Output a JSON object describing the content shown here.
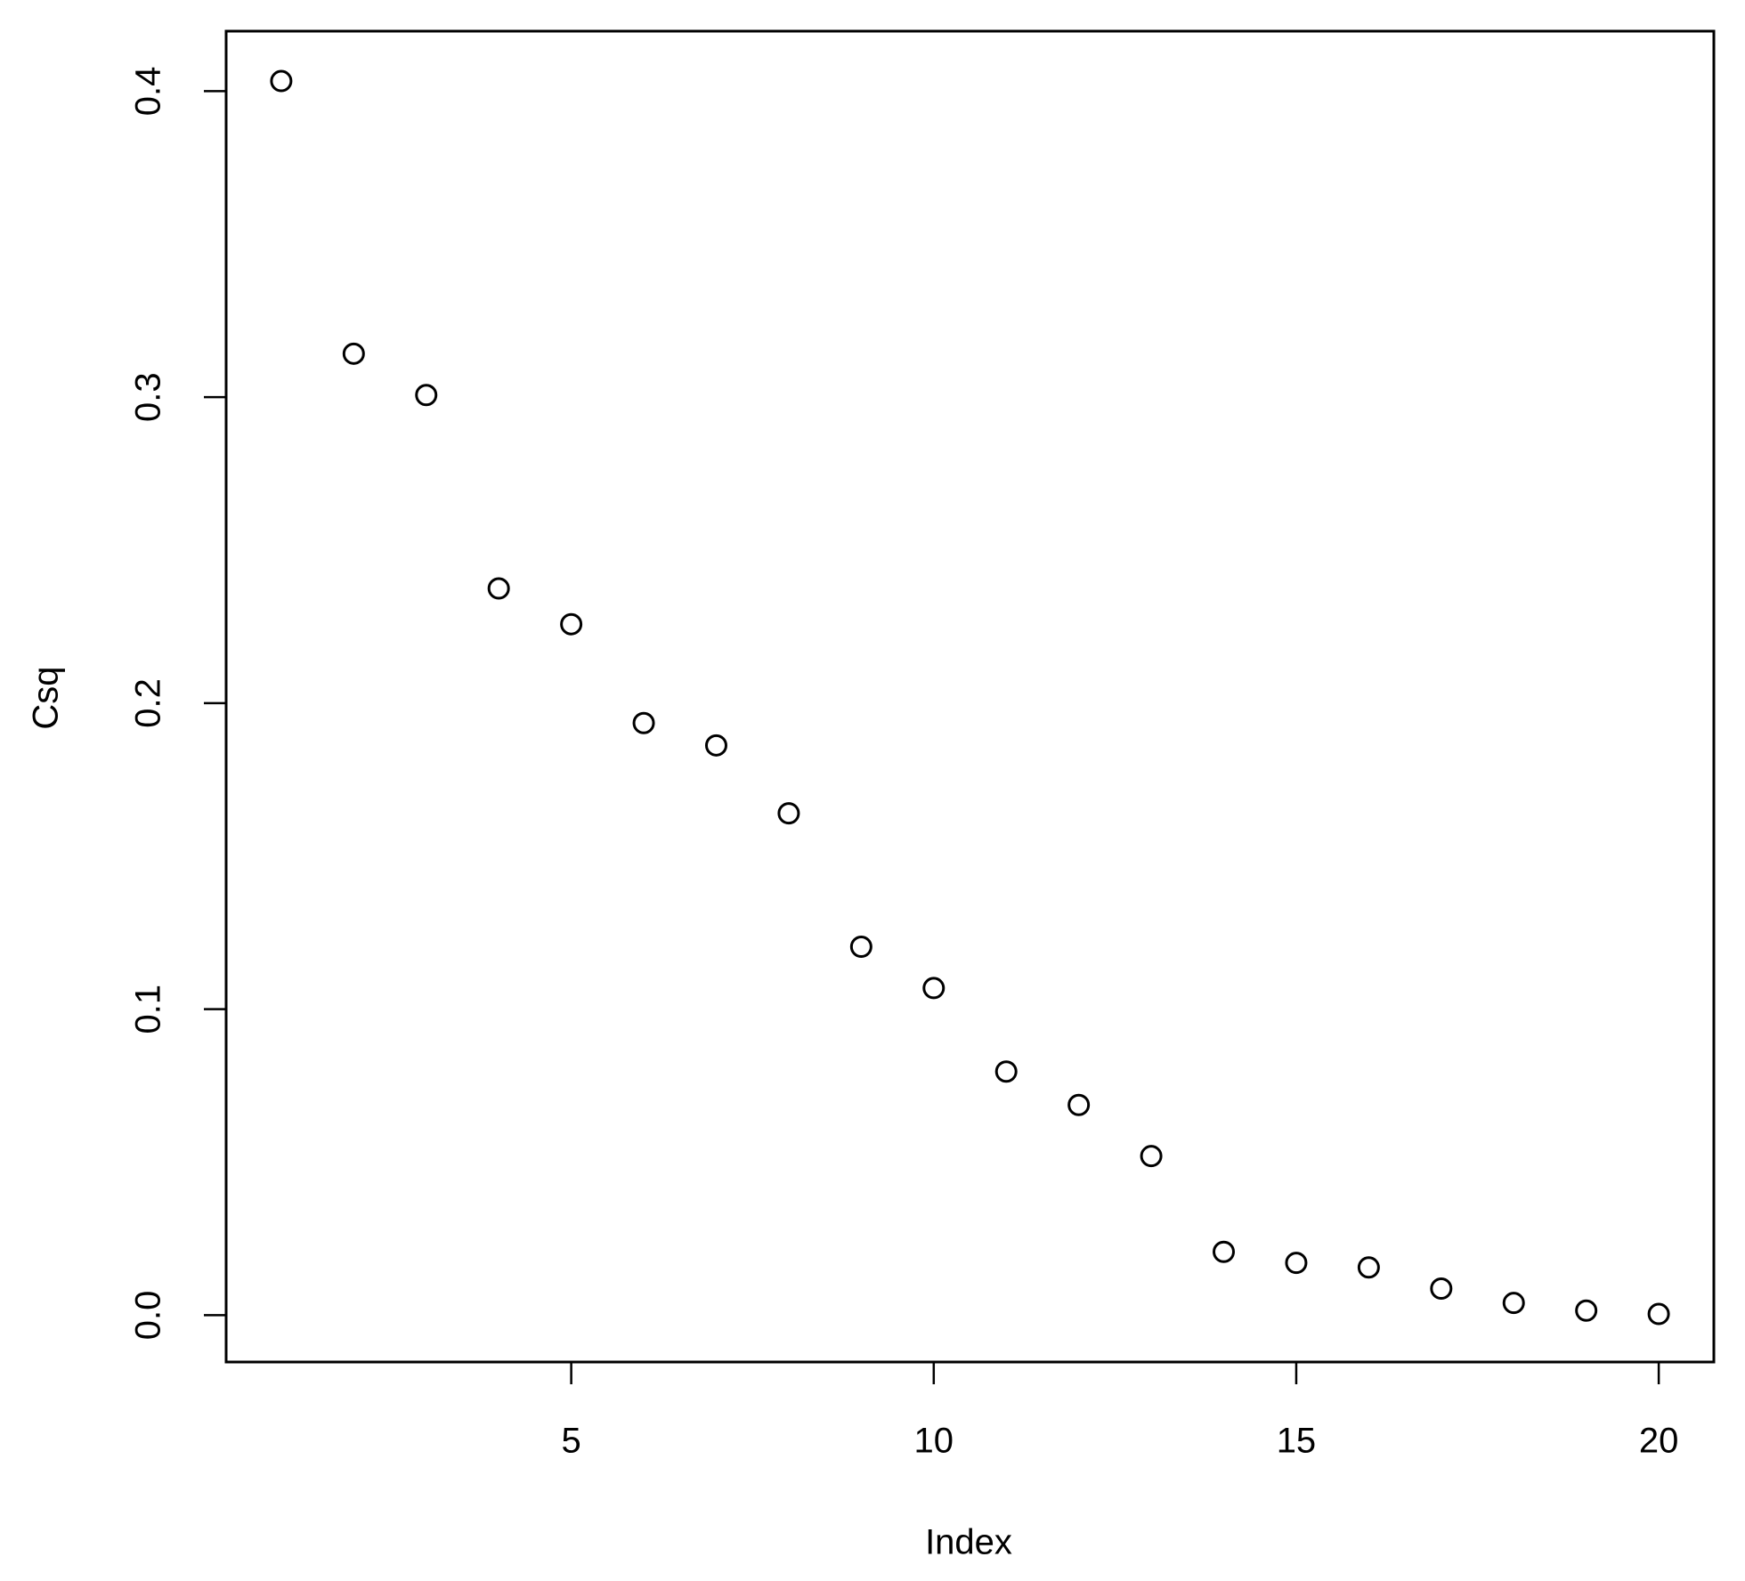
{
  "chart_data": {
    "type": "scatter",
    "x_label": "Index",
    "y_label": "Csq",
    "x": [
      1,
      2,
      3,
      4,
      5,
      6,
      7,
      8,
      9,
      10,
      11,
      12,
      13,
      14,
      15,
      16,
      17,
      18,
      19,
      20
    ],
    "series": [
      {
        "color": "#000000",
        "values": [
          0.4033,
          0.3142,
          0.3007,
          0.2375,
          0.2258,
          0.1935,
          0.1862,
          0.164,
          0.1204,
          0.1069,
          0.0796,
          0.0687,
          0.052,
          0.0207,
          0.0171,
          0.0156,
          0.0087,
          0.004,
          0.0015,
          0.0004
        ]
      }
    ],
    "xlim": [
      0.24,
      20.76
    ],
    "ylim": [
      -0.0153,
      0.4196
    ],
    "xticks": [
      5,
      10,
      15,
      20
    ],
    "yticks": [
      {
        "value": 0,
        "label": "0.0"
      },
      0.1,
      0.2,
      0.3,
      0.4
    ],
    "grid": false
  }
}
